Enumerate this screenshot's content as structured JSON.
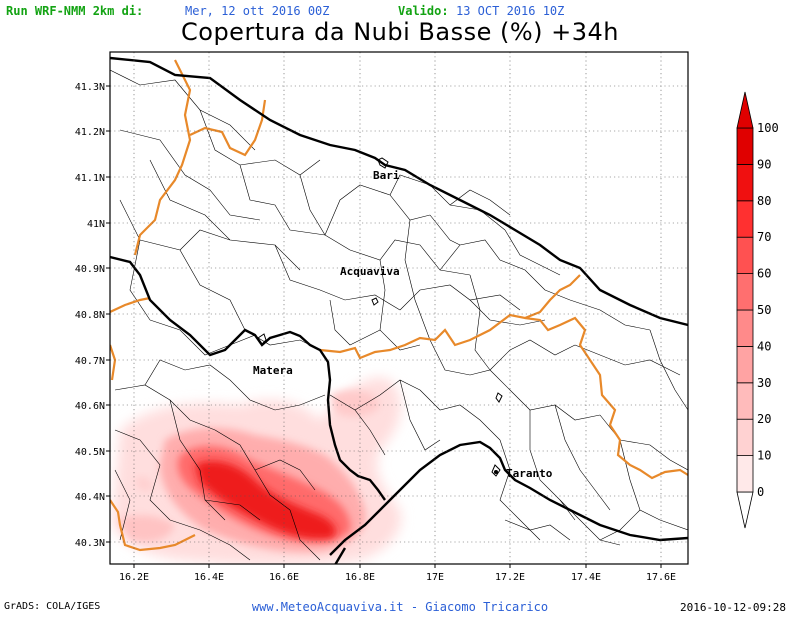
{
  "header": {
    "run_label": "Run WRF-NMM 2km di:",
    "run_value": "Mer, 12 ott 2016 00Z",
    "valid_label": "Valido:",
    "valid_value": "13 OCT 2016 10Z"
  },
  "title": "Copertura da Nubi Basse (%) +34h",
  "map": {
    "lat_labels": [
      "41.3N",
      "41.2N",
      "41.1N",
      "41N",
      "40.9N",
      "40.8N",
      "40.7N",
      "40.6N",
      "40.5N",
      "40.4N",
      "40.3N"
    ],
    "lon_labels": [
      "16.2E",
      "16.4E",
      "16.6E",
      "16.8E",
      "17E",
      "17.2E",
      "17.4E",
      "17.6E"
    ],
    "places": [
      {
        "name": "Bari"
      },
      {
        "name": "Acquaviva"
      },
      {
        "name": "Matera"
      },
      {
        "name": "Taranto"
      }
    ],
    "colors": {
      "province_border": "#e8892a",
      "region_border": "#000000",
      "coast": "#000000",
      "cloud_max": "#e30000"
    }
  },
  "colorbar": {
    "ticks": [
      "0",
      "10",
      "20",
      "30",
      "40",
      "50",
      "60",
      "70",
      "80",
      "90",
      "100"
    ],
    "colors": [
      "#ffffff",
      "#ffe9e9",
      "#ffd2d2",
      "#ffbbbb",
      "#ffa3a3",
      "#ff8a8a",
      "#ff6f6f",
      "#ff5151",
      "#ff3030",
      "#f01010",
      "#e00000"
    ]
  },
  "footer": {
    "left": "GrADS: COLA/IGES",
    "center": "www.MeteoAcquaviva.it  -  Giacomo Tricarico",
    "right": "2016-10-12-09:28"
  }
}
